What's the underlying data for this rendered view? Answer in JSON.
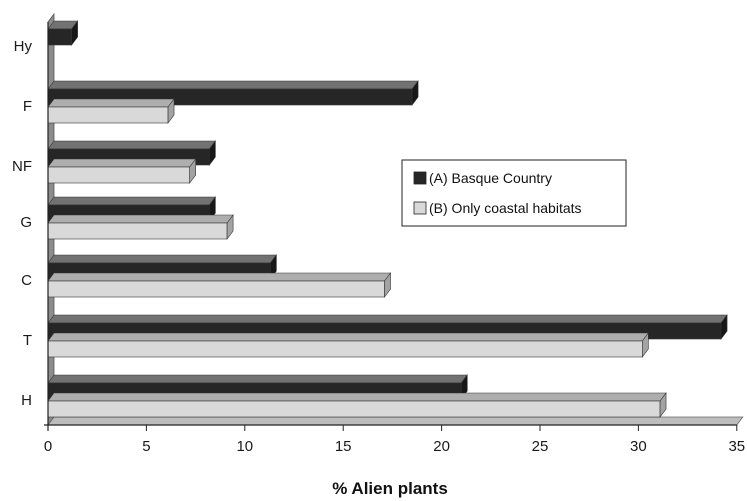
{
  "chart_data": {
    "type": "bar",
    "orientation": "horizontal",
    "style": "3d",
    "categories": [
      "Hy",
      "F",
      "NF",
      "G",
      "C",
      "T",
      "H"
    ],
    "series": [
      {
        "name": "(A) Basque Country",
        "color": "#262626",
        "values": [
          1.2,
          18.5,
          8.2,
          8.2,
          11.3,
          34.2,
          21.0
        ]
      },
      {
        "name": "(B) Only coastal habitats",
        "color": "#d9d9d9",
        "values": [
          0,
          6.1,
          7.2,
          9.1,
          17.1,
          30.2,
          31.1
        ]
      }
    ],
    "xlabel": "% Alien plants",
    "ylabel": "",
    "xlim": [
      0,
      35
    ],
    "xticks": [
      0,
      5,
      10,
      15,
      20,
      25,
      30,
      35
    ],
    "grid": false,
    "legend_position": "right"
  }
}
